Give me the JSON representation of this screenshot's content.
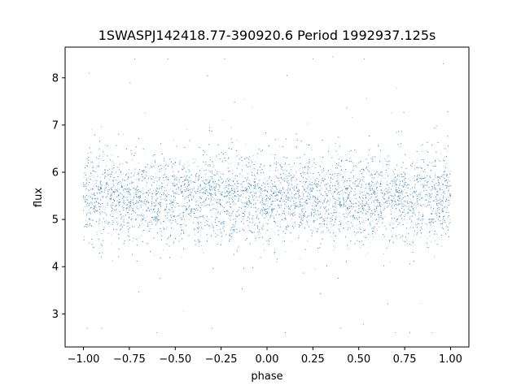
{
  "chart_data": {
    "type": "scatter",
    "title": "1SWASPJ142418.77-390920.6 Period 1992937.125s",
    "xlabel": "phase",
    "ylabel": "flux",
    "xlim": [
      -1.1,
      1.1
    ],
    "ylim": [
      2.3,
      8.65
    ],
    "xticks": [
      -1.0,
      -0.75,
      -0.5,
      -0.25,
      0.0,
      0.25,
      0.5,
      0.75,
      1.0
    ],
    "xtick_labels": [
      "−1.00",
      "−0.75",
      "−0.50",
      "−0.25",
      "0.00",
      "0.25",
      "0.50",
      "0.75",
      "1.00"
    ],
    "yticks": [
      3,
      4,
      5,
      6,
      7,
      8
    ],
    "ytick_labels": [
      "3",
      "4",
      "5",
      "6",
      "7",
      "8"
    ],
    "grid": false,
    "legend": "none",
    "series": [
      {
        "color": "#1f77b4",
        "x_range": [
          -1.0,
          1.0
        ],
        "y_center": 5.45,
        "y_core_spread": [
          4.5,
          6.4
        ],
        "y_full_range": [
          2.6,
          8.45
        ],
        "points": [
          [
            -1.0,
            5.5
          ],
          [
            -0.95,
            6.1
          ],
          [
            -0.9,
            4.7
          ],
          [
            -0.85,
            5.3
          ],
          [
            -0.8,
            5.8
          ],
          [
            -0.75,
            5.2
          ],
          [
            -0.7,
            6.0
          ],
          [
            -0.65,
            4.9
          ],
          [
            -0.6,
            5.6
          ],
          [
            -0.55,
            5.4
          ],
          [
            -0.5,
            6.2
          ],
          [
            -0.45,
            5.0
          ],
          [
            -0.4,
            5.5
          ],
          [
            -0.35,
            4.8
          ],
          [
            -0.3,
            5.9
          ],
          [
            -0.25,
            5.3
          ],
          [
            -0.2,
            5.6
          ],
          [
            -0.15,
            5.1
          ],
          [
            -0.1,
            5.7
          ],
          [
            -0.05,
            5.4
          ],
          [
            0.0,
            5.5
          ],
          [
            0.05,
            6.1
          ],
          [
            0.1,
            4.7
          ],
          [
            0.15,
            5.3
          ],
          [
            0.2,
            5.8
          ],
          [
            0.25,
            5.2
          ],
          [
            0.3,
            6.0
          ],
          [
            0.35,
            4.9
          ],
          [
            0.4,
            5.6
          ],
          [
            0.45,
            5.4
          ],
          [
            0.5,
            6.2
          ],
          [
            0.55,
            5.0
          ],
          [
            0.6,
            5.5
          ],
          [
            0.65,
            4.8
          ],
          [
            0.7,
            5.9
          ],
          [
            0.75,
            5.3
          ],
          [
            0.8,
            5.6
          ],
          [
            0.85,
            5.1
          ],
          [
            0.9,
            5.7
          ],
          [
            0.95,
            5.4
          ],
          [
            1.0,
            5.5
          ],
          [
            -0.97,
            8.1
          ],
          [
            -0.72,
            8.4
          ],
          [
            -0.54,
            8.4
          ],
          [
            -0.23,
            8.4
          ],
          [
            0.25,
            8.4
          ],
          [
            0.53,
            8.4
          ],
          [
            0.96,
            8.3
          ],
          [
            -0.98,
            2.7
          ],
          [
            -0.9,
            2.7
          ],
          [
            -0.6,
            2.6
          ],
          [
            -0.3,
            2.7
          ],
          [
            0.1,
            2.6
          ],
          [
            0.4,
            2.7
          ],
          [
            0.7,
            2.6
          ],
          [
            0.9,
            2.6
          ]
        ]
      }
    ]
  }
}
